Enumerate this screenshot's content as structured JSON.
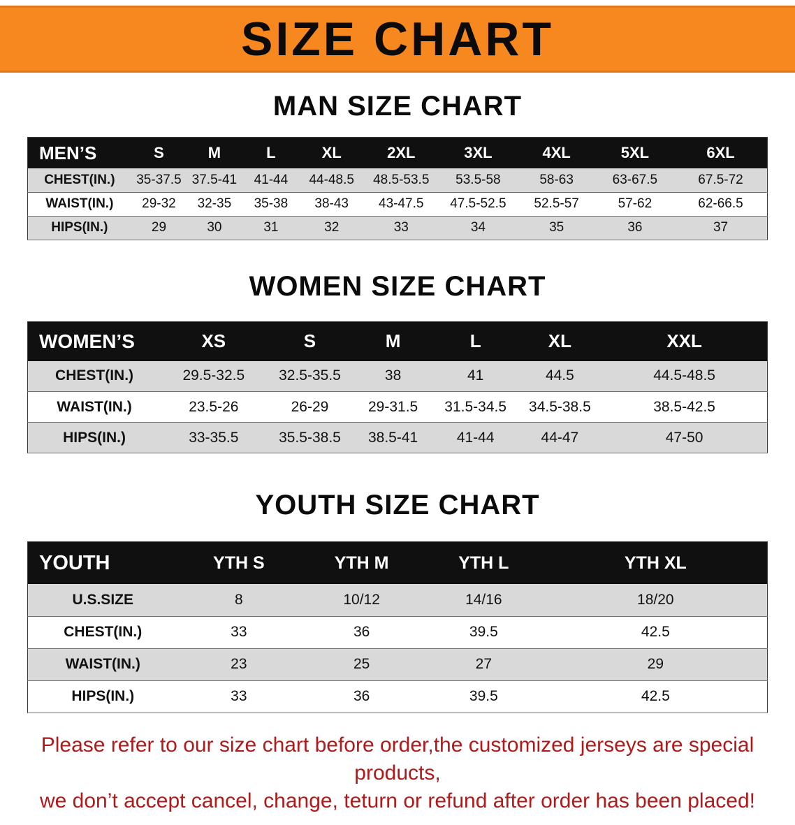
{
  "banner": {
    "title": "SIZE CHART"
  },
  "colors": {
    "banner_bg": "#F6881F",
    "table_header_bg": "#101010",
    "row_alt_bg": "#D9D9D9",
    "footer_text": "#B11A1A"
  },
  "sections": {
    "men": {
      "heading": "MAN SIZE CHART",
      "table": {
        "header": [
          "MEN’S",
          "S",
          "M",
          "L",
          "XL",
          "2XL",
          "3XL",
          "4XL",
          "5XL",
          "6XL"
        ],
        "rows": [
          [
            "CHEST(IN.)",
            "35-37.5",
            "37.5-41",
            "41-44",
            "44-48.5",
            "48.5-53.5",
            "53.5-58",
            "58-63",
            "63-67.5",
            "67.5-72"
          ],
          [
            "WAIST(IN.)",
            "29-32",
            "32-35",
            "35-38",
            "38-43",
            "43-47.5",
            "47.5-52.5",
            "52.5-57",
            "57-62",
            "62-66.5"
          ],
          [
            "HIPS(IN.)",
            "29",
            "30",
            "31",
            "32",
            "33",
            "34",
            "35",
            "36",
            "37"
          ]
        ]
      }
    },
    "women": {
      "heading": "WOMEN SIZE CHART",
      "table": {
        "header": [
          "WOMEN’S",
          "XS",
          "S",
          "M",
          "L",
          "XL",
          "XXL"
        ],
        "rows": [
          [
            "CHEST(IN.)",
            "29.5-32.5",
            "32.5-35.5",
            "38",
            "41",
            "44.5",
            "44.5-48.5"
          ],
          [
            "WAIST(IN.)",
            "23.5-26",
            "26-29",
            "29-31.5",
            "31.5-34.5",
            "34.5-38.5",
            "38.5-42.5"
          ],
          [
            "HIPS(IN.)",
            "33-35.5",
            "35.5-38.5",
            "38.5-41",
            "41-44",
            "44-47",
            "47-50"
          ]
        ]
      }
    },
    "youth": {
      "heading": "YOUTH SIZE CHART",
      "table": {
        "header": [
          "YOUTH",
          "YTH S",
          "YTH M",
          "YTH L",
          "YTH XL"
        ],
        "rows": [
          [
            "U.S.SIZE",
            "8",
            "10/12",
            "14/16",
            "18/20"
          ],
          [
            "CHEST(IN.)",
            "33",
            "36",
            "39.5",
            "42.5"
          ],
          [
            "WAIST(IN.)",
            "23",
            "25",
            "27",
            "29"
          ],
          [
            "HIPS(IN.)",
            "33",
            "36",
            "39.5",
            "42.5"
          ]
        ]
      }
    }
  },
  "footer": {
    "line1": "Please refer to our size chart before order,the customized jerseys are special products,",
    "line2": "we don’t accept cancel, change, teturn or refund after order has been placed!"
  }
}
